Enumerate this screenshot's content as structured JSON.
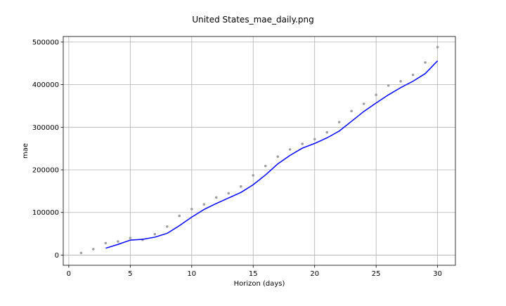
{
  "chart_data": {
    "type": "line",
    "title": "United States_mae_daily.png",
    "xlabel": "Horizon (days)",
    "ylabel": "mae",
    "xlim": [
      -0.45,
      31.45
    ],
    "ylim": [
      -24000,
      513000
    ],
    "xticks": [
      0,
      5,
      10,
      15,
      20,
      25,
      30
    ],
    "xtick_labels": [
      "0",
      "5",
      "10",
      "15",
      "20",
      "25",
      "30"
    ],
    "yticks": [
      0,
      100000,
      200000,
      300000,
      400000,
      500000
    ],
    "ytick_labels": [
      "0",
      "100000",
      "200000",
      "300000",
      "400000",
      "500000"
    ],
    "grid": true,
    "series": [
      {
        "kind": "scatter",
        "color": "#a0a0a0",
        "x": [
          1,
          2,
          3,
          4,
          5,
          6,
          7,
          8,
          9,
          10,
          11,
          12,
          13,
          14,
          15,
          16,
          17,
          18,
          19,
          20,
          21,
          22,
          23,
          24,
          25,
          26,
          27,
          28,
          29,
          30
        ],
        "y": [
          5000,
          14000,
          28000,
          32000,
          40000,
          36000,
          49000,
          67000,
          92000,
          108000,
          119000,
          135000,
          145000,
          161000,
          187000,
          209000,
          231000,
          248000,
          261000,
          272000,
          288000,
          312000,
          338000,
          355000,
          376000,
          398000,
          408000,
          423000,
          452000,
          488000
        ]
      },
      {
        "kind": "line",
        "color": "#0000ff",
        "x": [
          3,
          4,
          5,
          6,
          7,
          8,
          9,
          10,
          11,
          12,
          13,
          14,
          15,
          16,
          17,
          18,
          19,
          20,
          21,
          22,
          23,
          24,
          25,
          26,
          27,
          28,
          29,
          30
        ],
        "y": [
          16000,
          25000,
          35000,
          37000,
          42000,
          51000,
          69000,
          89000,
          107000,
          121000,
          134000,
          147000,
          165000,
          188000,
          214000,
          234000,
          251000,
          262000,
          275000,
          291000,
          314000,
          337000,
          357000,
          376000,
          393000,
          408000,
          426000,
          456000
        ]
      }
    ]
  }
}
